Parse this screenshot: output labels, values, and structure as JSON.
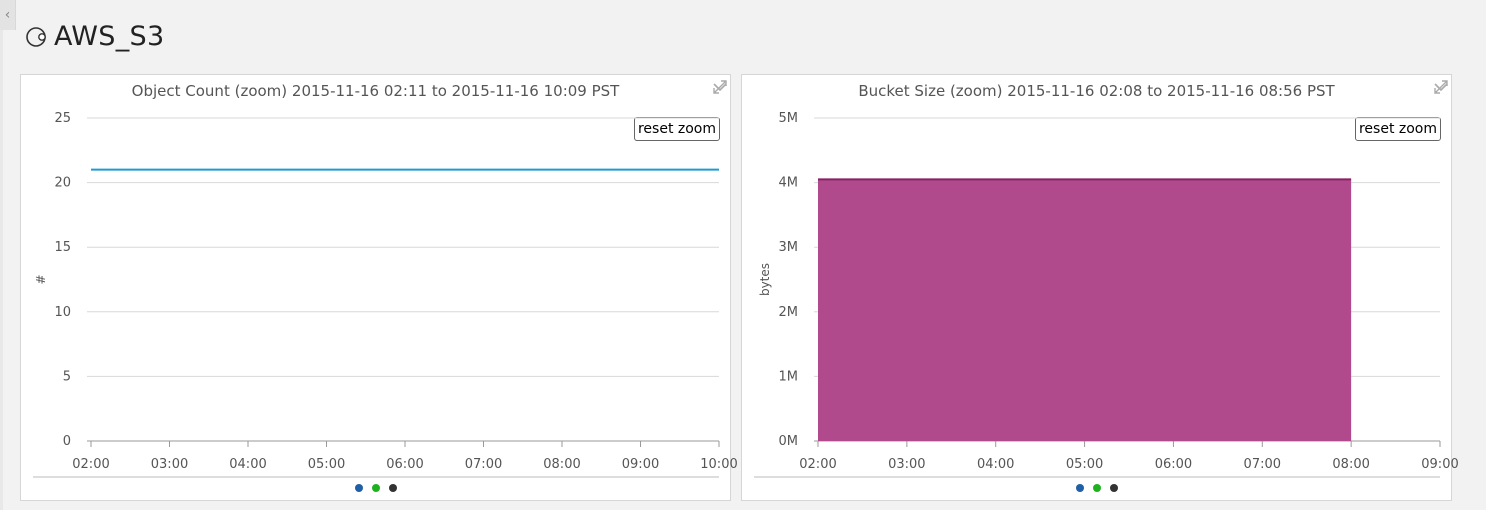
{
  "page": {
    "title": "AWS_S3",
    "side_toggle": "‹"
  },
  "header_icon": "circular-status-icon",
  "panels": [
    {
      "title": "Object Count (zoom) 2015-11-16 02:11 to 2015-11-16 10:09 PST",
      "reset_label": "reset zoom",
      "expand_icon": "expand-icon",
      "menu_icon": "chevron-down-icon",
      "legend_colors": [
        "#1f5fa6",
        "#1fb21f",
        "#333333"
      ]
    },
    {
      "title": "Bucket Size (zoom) 2015-11-16 02:08 to 2015-11-16 08:56 PST",
      "reset_label": "reset zoom",
      "expand_icon": "expand-icon",
      "menu_icon": "chevron-down-icon",
      "legend_colors": [
        "#1f5fa6",
        "#1fb21f",
        "#333333"
      ]
    }
  ],
  "chart_data": [
    {
      "type": "line",
      "title": "Object Count (zoom) 2015-11-16 02:11 to 2015-11-16 10:09 PST",
      "ylabel": "#",
      "xlabel": "",
      "x_ticks": [
        "02:00",
        "03:00",
        "04:00",
        "05:00",
        "06:00",
        "07:00",
        "08:00",
        "09:00",
        "10:00"
      ],
      "y_ticks": [
        "0",
        "5",
        "10",
        "15",
        "20",
        "25"
      ],
      "ylim": [
        0,
        25
      ],
      "xlim_hours": [
        2,
        10
      ],
      "grid": true,
      "series": [
        {
          "color": "#1b9ad6",
          "x": [
            2.0,
            10.0
          ],
          "y": [
            21,
            21
          ]
        }
      ]
    },
    {
      "type": "area",
      "title": "Bucket Size (zoom) 2015-11-16 02:08 to 2015-11-16 08:56 PST",
      "ylabel": "bytes",
      "xlabel": "",
      "x_ticks": [
        "02:00",
        "03:00",
        "04:00",
        "05:00",
        "06:00",
        "07:00",
        "08:00",
        "09:00"
      ],
      "y_ticks": [
        "0M",
        "1M",
        "2M",
        "3M",
        "4M",
        "5M"
      ],
      "ylim": [
        0,
        5
      ],
      "xlim_hours": [
        2,
        9
      ],
      "grid": true,
      "series": [
        {
          "color": "#b14a8c",
          "line_color": "#8a1f66",
          "x": [
            2.0,
            8.0
          ],
          "y": [
            4.05,
            4.05
          ]
        }
      ]
    }
  ]
}
